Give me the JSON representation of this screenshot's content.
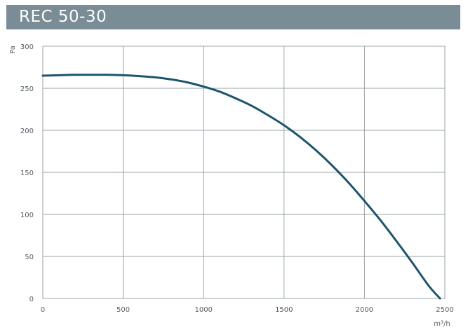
{
  "title": "REC 50-30",
  "colors": {
    "title_bar": "#7a8c96",
    "title_text": "#ffffff",
    "grid": "#9aa3a8",
    "curve": "#1d5470",
    "tick_text": "#555d66"
  },
  "chart_data": {
    "type": "line",
    "title": "REC 50-30",
    "xlabel": "m³/h",
    "ylabel": "Pa",
    "xlim": [
      0,
      2500
    ],
    "ylim": [
      0,
      300
    ],
    "grid": true,
    "x_ticks": [
      "0",
      "500",
      "1000",
      "1500",
      "2000",
      "2500"
    ],
    "y_ticks": [
      "0",
      "50",
      "100",
      "150",
      "200",
      "250",
      "300"
    ],
    "series": [
      {
        "x": [
          0,
          100,
          200,
          300,
          400,
          500,
          600,
          700,
          800,
          900,
          1000,
          1100,
          1200,
          1300,
          1400,
          1500,
          1600,
          1700,
          1800,
          1900,
          2000,
          2100,
          2200,
          2300,
          2400,
          2470
        ],
        "y": [
          265,
          265.5,
          266,
          266,
          266,
          265.5,
          264.5,
          263,
          260.5,
          257,
          252,
          246,
          238,
          229,
          218,
          206,
          192,
          176,
          158,
          138,
          116,
          93,
          68,
          42,
          15,
          0
        ]
      }
    ]
  }
}
